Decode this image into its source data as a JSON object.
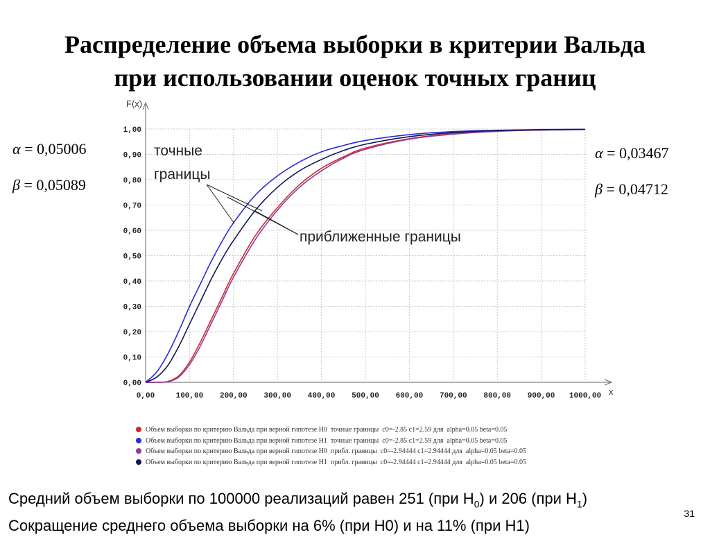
{
  "slide": {
    "title_line1": "Распределение объема выборки в критерии Вальда",
    "title_line2": "при использовании оценок точных границ",
    "page_number": "31"
  },
  "params_left": {
    "alpha": "0,05006",
    "beta": "0,05089"
  },
  "params_right": {
    "alpha": "0,03467",
    "beta": "0,04712"
  },
  "footer": {
    "line1_a": "Средний объем выборки по 100000 реализаций равен 251 (при H",
    "line1_sub0": "0",
    "line1_b": ") и 206 (при H",
    "line1_sub1": "1",
    "line1_c": ")",
    "line2": "Сокращение среднего объема выборки на 6% (при H0) и на 11% (при H1)"
  },
  "chart_data": {
    "type": "line",
    "ylabel": "F(x)",
    "xlabel": "x",
    "xlim": [
      0,
      1000
    ],
    "ylim": [
      0,
      1
    ],
    "x_ticks": [
      "0,00",
      "100,00",
      "200,00",
      "300,00",
      "400,00",
      "500,00",
      "600,00",
      "700,00",
      "800,00",
      "900,00",
      "1000,00"
    ],
    "y_ticks": [
      "0,00",
      "0,10",
      "0,20",
      "0,30",
      "0,40",
      "0,50",
      "0,60",
      "0,70",
      "0,80",
      "0,90",
      "1,00"
    ],
    "grid": true,
    "annotations": {
      "exact": "точные\nграницы",
      "approx": "приближенные границы"
    },
    "x": [
      0,
      25,
      50,
      75,
      100,
      125,
      150,
      175,
      200,
      250,
      300,
      350,
      400,
      450,
      500,
      600,
      700,
      800,
      900,
      1000
    ],
    "series": [
      {
        "name": "Объем выборки по критерию Вальда при верной гипотезе H0  точные границы  c0=-2.85 c1=2.59 для  alpha=0.05 beta=0.05",
        "color": "#d62728",
        "values": [
          0,
          0,
          0.003,
          0.025,
          0.08,
          0.16,
          0.25,
          0.34,
          0.43,
          0.58,
          0.69,
          0.78,
          0.845,
          0.89,
          0.925,
          0.962,
          0.982,
          0.992,
          0.996,
          0.998
        ]
      },
      {
        "name": "Объем выборки по критерию Вальда при верной гипотезе H1  точные границы  c0=-2.85 c1=2.59 для  alpha=0.05 beta=0.05",
        "color": "#2a2ad6",
        "values": [
          0,
          0.04,
          0.11,
          0.2,
          0.3,
          0.39,
          0.48,
          0.56,
          0.63,
          0.74,
          0.815,
          0.87,
          0.91,
          0.935,
          0.955,
          0.978,
          0.99,
          0.995,
          0.998,
          0.999
        ]
      },
      {
        "name": "Объем выборки по критерию Вальда при верной гипотезе H0  прибл. границы  c0=-2.94444 c1=2.94444 для  alpha=0.05 beta=0.05",
        "color": "#8e3a9e",
        "values": [
          0,
          0,
          0.002,
          0.02,
          0.07,
          0.145,
          0.235,
          0.325,
          0.415,
          0.565,
          0.68,
          0.77,
          0.835,
          0.885,
          0.92,
          0.96,
          0.98,
          0.991,
          0.996,
          0.998
        ]
      },
      {
        "name": "Объем выборки по критерию Вальда при верной гипотезе H1  прибл. границы  c0=-2.94444 c1=2.94444 для  alpha=0.05 beta=0.05",
        "color": "#14145a",
        "values": [
          0,
          0.02,
          0.065,
          0.14,
          0.23,
          0.32,
          0.41,
          0.49,
          0.56,
          0.68,
          0.77,
          0.835,
          0.88,
          0.915,
          0.94,
          0.97,
          0.986,
          0.994,
          0.997,
          0.999
        ]
      }
    ]
  }
}
